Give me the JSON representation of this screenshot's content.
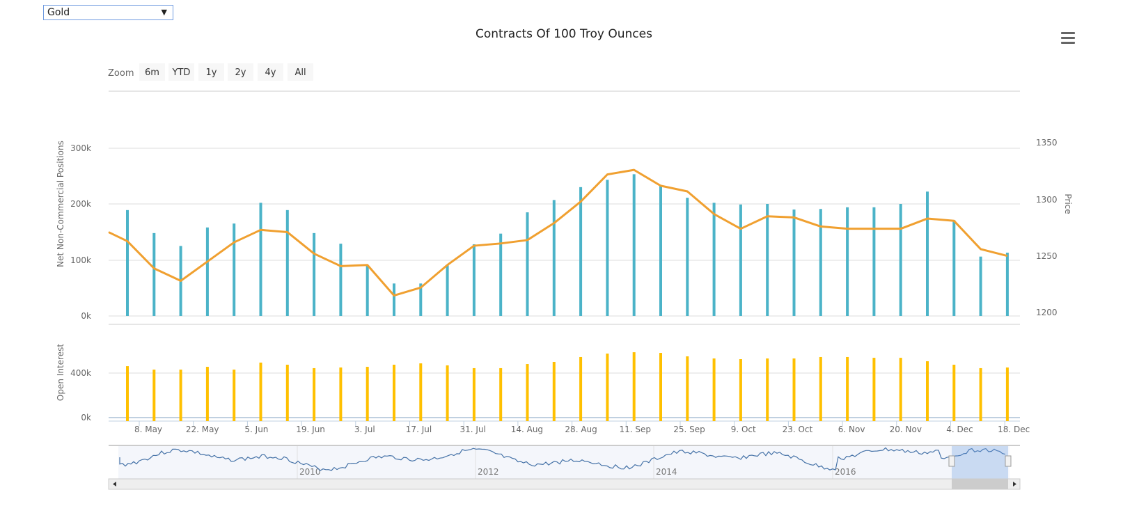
{
  "select": {
    "value": "Gold",
    "arrow": "▼"
  },
  "menu_icon": "hamburger-icon",
  "zoom": {
    "label": "Zoom",
    "buttons": [
      "6m",
      "YTD",
      "1y",
      "2y",
      "4y",
      "All"
    ]
  },
  "chart_data": {
    "type": "bar+line",
    "title": "Contracts Of 100 Troy Ounces",
    "colors": {
      "positions": "#4bb3c8",
      "price": "#f0a030",
      "open_interest": "#ffc000",
      "navigator": "#4572a7"
    },
    "x_tick_labels": [
      "8. May",
      "22. May",
      "5. Jun",
      "19. Jun",
      "3. Jul",
      "17. Jul",
      "31. Jul",
      "14. Aug",
      "28. Aug",
      "11. Sep",
      "25. Sep",
      "9. Oct",
      "23. Oct",
      "6. Nov",
      "20. Nov",
      "4. Dec",
      "18. Dec"
    ],
    "panels": [
      {
        "name": "positions",
        "ylabel": "Net Non-Commercial Positions",
        "yticks": [
          "0k",
          "100k",
          "200k",
          "300k"
        ],
        "ylim": [
          0,
          300000
        ],
        "right_ylabel": "Price",
        "right_yticks": [
          "1200",
          "1250",
          "1300",
          "1350"
        ],
        "right_ylim": [
          1200,
          1350
        ],
        "series": [
          {
            "name": "Net Non-Commercial Positions",
            "type": "column",
            "values": [
              189,
              148,
              125,
              158,
              165,
              202,
              189,
              148,
              129,
              91,
              58,
              58,
              91,
              128,
              147,
              185,
              207,
              230,
              243,
              253,
              233,
              211,
              202,
              199,
              200,
              190,
              191,
              194,
              194,
              200,
              222,
              171,
              106,
              113
            ]
          },
          {
            "name": "Price",
            "type": "line",
            "start": 1271,
            "values": [
              1263,
              1239,
              1228,
              1245,
              1262,
              1273,
              1271,
              1252,
              1241,
              1242,
              1215,
              1222,
              1242,
              1259,
              1261,
              1264,
              1279,
              1298,
              1322,
              1326,
              1312,
              1307,
              1287,
              1274,
              1285,
              1284,
              1276,
              1274,
              1274,
              1274,
              1283,
              1281,
              1256,
              1250
            ]
          }
        ]
      },
      {
        "name": "open_interest",
        "ylabel": "Open Interest",
        "yticks": [
          "0k",
          "400k"
        ],
        "ylim": [
          0,
          400000
        ],
        "series": [
          {
            "name": "Open Interest",
            "type": "column",
            "values": [
              462,
              431,
              431,
              456,
              431,
              494,
              475,
              444,
              450,
              456,
              475,
              487,
              469,
              444,
              444,
              481,
              500,
              544,
              575,
              587,
              581,
              550,
              531,
              525,
              531,
              531,
              544,
              544,
              537,
              537,
              506,
              475,
              444,
              450
            ]
          }
        ]
      }
    ],
    "navigator": {
      "year_labels": [
        "2010",
        "2012",
        "2014",
        "2016"
      ]
    }
  }
}
